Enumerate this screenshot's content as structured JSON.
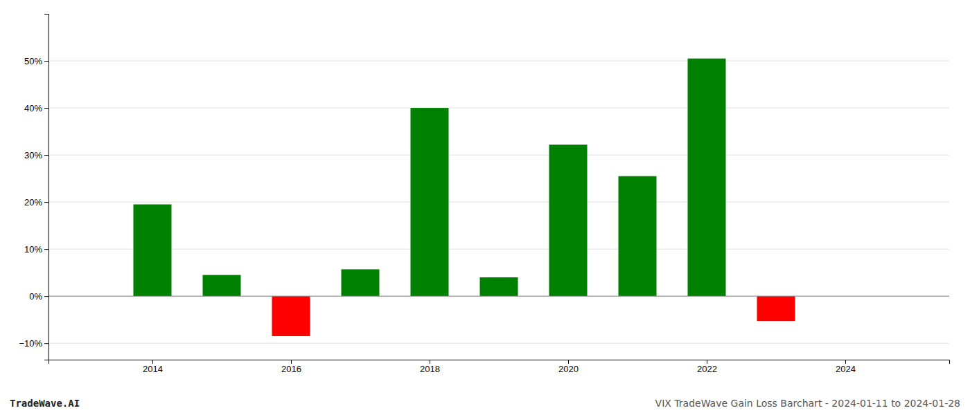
{
  "chart_data": {
    "type": "bar",
    "x": [
      2014,
      2015,
      2016,
      2017,
      2018,
      2019,
      2020,
      2021,
      2022,
      2023
    ],
    "values": [
      0.195,
      0.045,
      -0.085,
      0.057,
      0.4,
      0.04,
      0.322,
      0.255,
      0.505,
      -0.053
    ],
    "colors": [
      "#008000",
      "#008000",
      "#ff0000",
      "#008000",
      "#008000",
      "#008000",
      "#008000",
      "#008000",
      "#008000",
      "#ff0000"
    ],
    "xlim": [
      2012.5,
      2025.5
    ],
    "xticks": [
      2014,
      2016,
      2018,
      2020,
      2022,
      2024
    ],
    "ylim": [
      -0.135,
      0.6
    ],
    "yticks": [
      {
        "value": -0.1,
        "label": "−10%"
      },
      {
        "value": 0.0,
        "label": "0%"
      },
      {
        "value": 0.1,
        "label": "10%"
      },
      {
        "value": 0.2,
        "label": "20%"
      },
      {
        "value": 0.3,
        "label": "30%"
      },
      {
        "value": 0.4,
        "label": "40%"
      },
      {
        "value": 0.5,
        "label": "50%"
      }
    ],
    "grid": true,
    "annotations": [
      "TradeWave.AI",
      "VIX TradeWave Gain Loss Barchart - 2024-01-11 to 2024-01-28"
    ]
  }
}
